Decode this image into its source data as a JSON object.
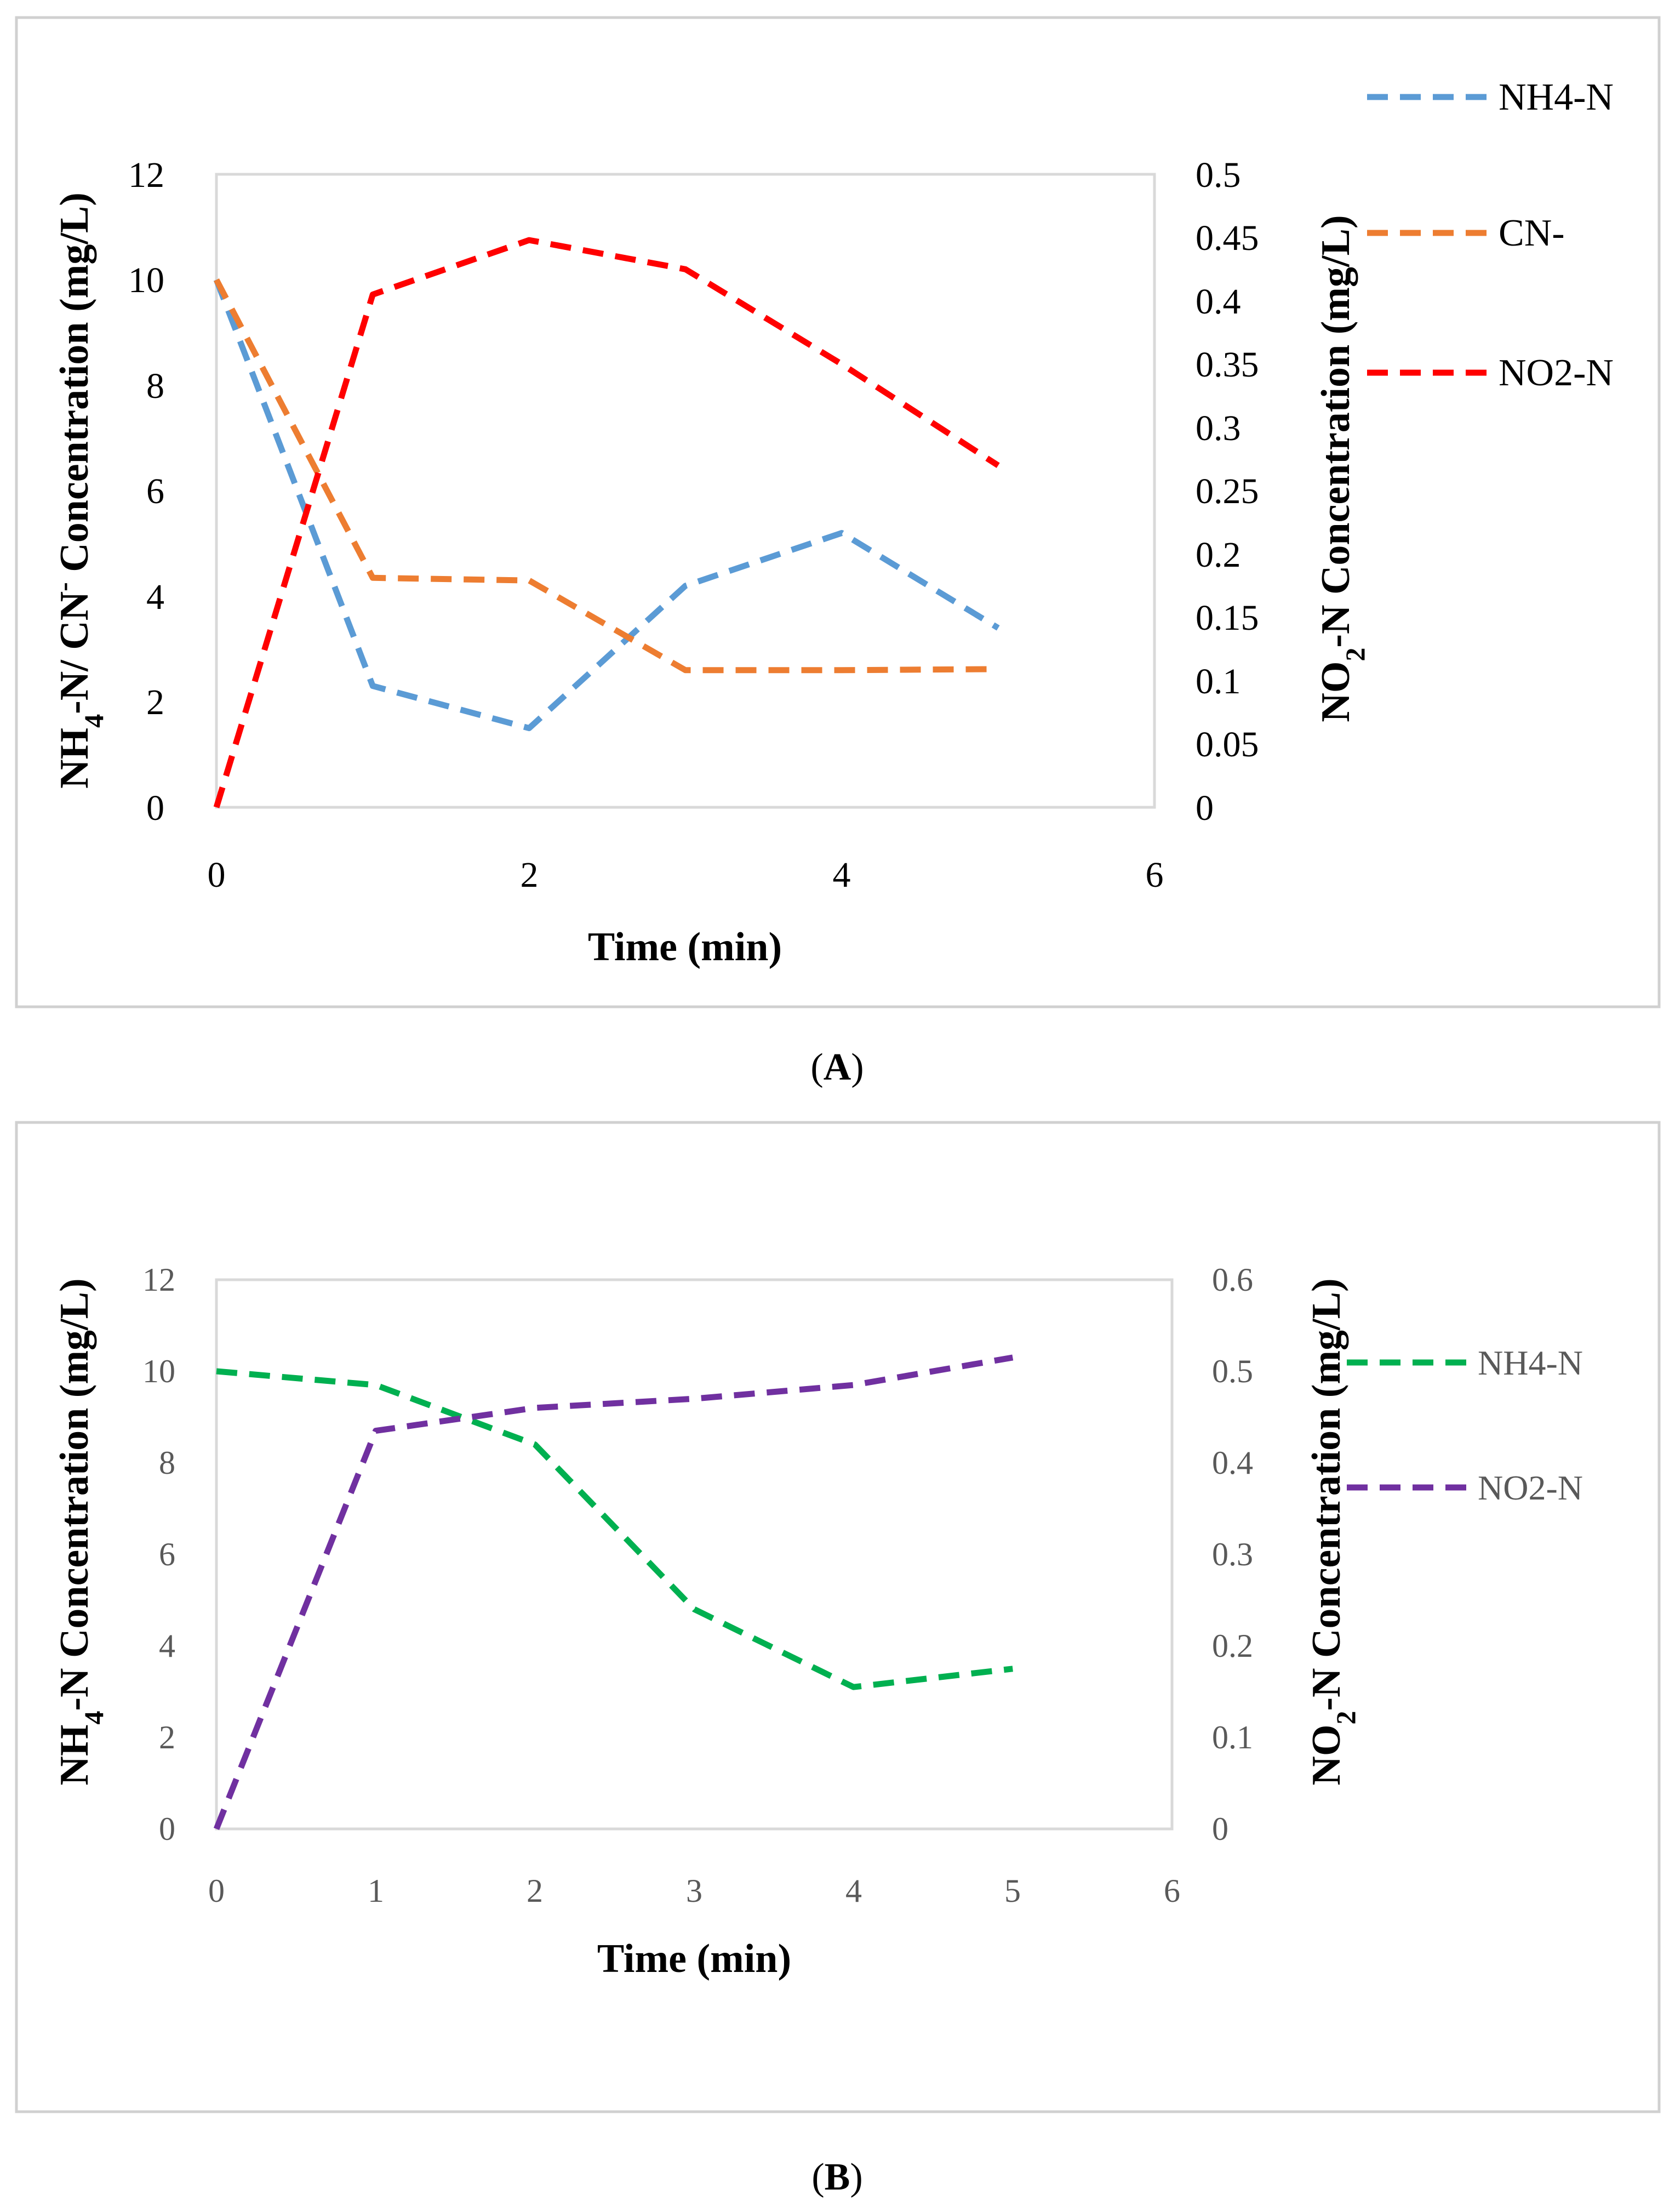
{
  "chart_data": [
    {
      "id": "A",
      "type": "line",
      "caption_letter": "A",
      "x": [
        0,
        1,
        2,
        3,
        4,
        5
      ],
      "xlabel": "Time (min)",
      "xlim": [
        0,
        6
      ],
      "xticks": [
        "0",
        "2",
        "4",
        "6"
      ],
      "ylabel_left": {
        "pre": "NH",
        "sub1": "4",
        "mid": "-N/ CN",
        "sup": "-",
        "post": " Concentration (mg/L)"
      },
      "ylabel_right": {
        "pre": "NO",
        "sub": "2",
        "post": "-N Concentration (mg/L)"
      },
      "ylim_left": [
        0,
        12
      ],
      "ylim_right": [
        0,
        0.5
      ],
      "yticks_left": [
        "0",
        "2",
        "4",
        "6",
        "8",
        "10",
        "12"
      ],
      "yticks_right": [
        "0",
        "0.05",
        "0.1",
        "0.15",
        "0.2",
        "0.25",
        "0.3",
        "0.35",
        "0.4",
        "0.45",
        "0.5"
      ],
      "series": [
        {
          "name": "NH4-N",
          "axis": "left",
          "color": "#5B9BD5",
          "values": [
            10,
            2.3,
            1.5,
            4.2,
            5.2,
            3.4
          ]
        },
        {
          "name": "CN-",
          "axis": "left",
          "color": "#ED7D31",
          "values": [
            10,
            4.35,
            4.3,
            2.6,
            2.6,
            2.62
          ]
        },
        {
          "name": "NO2-N",
          "axis": "right",
          "color": "#FF0000",
          "values": [
            0,
            0.405,
            0.448,
            0.425,
            0.35,
            0.27
          ]
        }
      ],
      "legend": "right",
      "grid": false
    },
    {
      "id": "B",
      "type": "line",
      "caption_letter": "B",
      "x": [
        0,
        1,
        2,
        3,
        4,
        5
      ],
      "xlabel": "Time (min)",
      "xlim": [
        0,
        6
      ],
      "xticks": [
        "0",
        "1",
        "2",
        "3",
        "4",
        "5",
        "6"
      ],
      "ylabel_left": {
        "pre": "NH",
        "sub1": "4",
        "post": "-N Concentration (mg/L)"
      },
      "ylabel_right": {
        "pre": "NO",
        "sub": "2",
        "post": "-N Concentration (mg/L)"
      },
      "ylim_left": [
        0,
        12
      ],
      "ylim_right": [
        0,
        0.6
      ],
      "yticks_left": [
        "0",
        "2",
        "4",
        "6",
        "8",
        "10",
        "12"
      ],
      "yticks_right": [
        "0",
        "0.1",
        "0.2",
        "0.3",
        "0.4",
        "0.5",
        "0.6"
      ],
      "series": [
        {
          "name": "NH4-N",
          "axis": "left",
          "color": "#00B050",
          "values": [
            10,
            9.7,
            8.4,
            4.8,
            3.1,
            3.5
          ]
        },
        {
          "name": "NO2-N",
          "axis": "right",
          "color": "#7030A0",
          "values": [
            0,
            0.435,
            0.46,
            0.47,
            0.485,
            0.515
          ]
        }
      ],
      "legend": "right",
      "grid": false
    }
  ]
}
